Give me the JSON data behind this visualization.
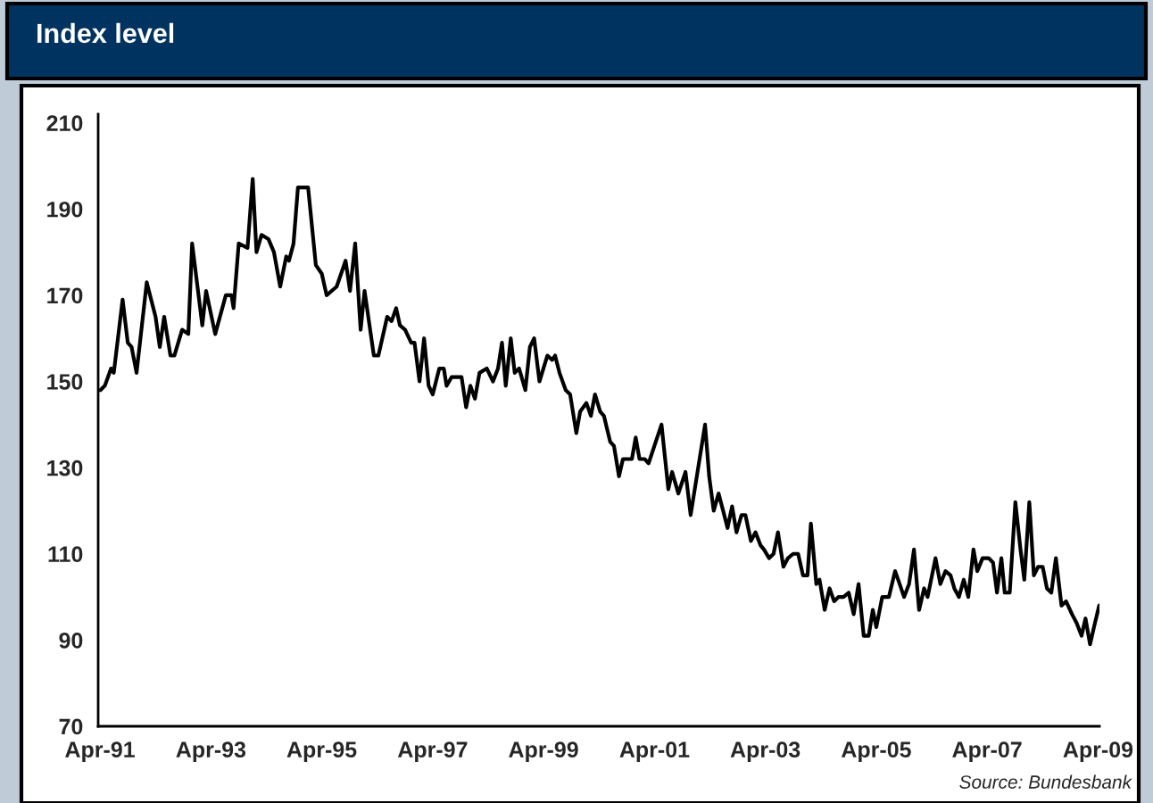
{
  "chart_data": {
    "type": "line",
    "title": "Index level",
    "annotations": [
      "Source: Bundesbank"
    ],
    "x": [
      "1991-04-04",
      "1991-05-03",
      "1991-06-13",
      "1991-07-01",
      "1991-08-28",
      "1991-10-01",
      "1991-10-26",
      "1991-11-28",
      "1992-02-03",
      "1992-04-01",
      "1992-04-29",
      "1992-05-28",
      "1992-07-08",
      "1992-08-03",
      "1992-09-23",
      "1992-11-03",
      "1992-11-28",
      "1993-02-03",
      "1993-02-28",
      "1993-04-29",
      "1993-07-08",
      "1993-08-14",
      "1993-08-28",
      "1993-10-01",
      "1993-11-28",
      "1994-01-01",
      "1994-01-26",
      "1994-02-28",
      "1994-04-15",
      "1994-05-21",
      "1994-07-01",
      "1994-08-10",
      "1994-08-28",
      "1994-09-27",
      "1994-10-26",
      "1995-01-01",
      "1995-02-21",
      "1995-04-01",
      "1995-05-03",
      "1995-07-08",
      "1995-09-05",
      "1995-10-04",
      "1995-11-07",
      "1995-12-13",
      "1996-01-08",
      "1996-03-09",
      "1996-04-08",
      "1996-06-05",
      "1996-07-04",
      "1996-08-03",
      "1996-08-28",
      "1996-10-01",
      "1996-11-10",
      "1996-12-02",
      "1997-01-04",
      "1997-02-03",
      "1997-03-05",
      "1997-04-01",
      "1997-05-14",
      "1997-06-13",
      "1997-07-01",
      "1997-08-03",
      "1997-08-28",
      "1997-10-08",
      "1997-11-07",
      "1997-12-05",
      "1998-01-04",
      "1998-02-03",
      "1998-03-23",
      "1998-05-03",
      "1998-06-05",
      "1998-07-01",
      "1998-07-26",
      "1998-08-28",
      "1998-09-23",
      "1998-10-22",
      "1998-12-02",
      "1999-01-01",
      "1999-01-29",
      "1999-03-05",
      "1999-04-26",
      "1999-05-28",
      "1999-06-16",
      "1999-07-15",
      "1999-08-25",
      "1999-09-23",
      "1999-11-03",
      "1999-11-28",
      "2000-01-08",
      "2000-02-07",
      "2000-03-05",
      "2000-04-08",
      "2000-05-03",
      "2000-06-13",
      "2000-07-08",
      "2000-08-10",
      "2000-09-05",
      "2000-10-08",
      "2000-11-03",
      "2000-11-28",
      "2000-12-23",
      "2001-01-26",
      "2001-02-21",
      "2001-05-17",
      "2001-07-01",
      "2001-07-26",
      "2001-09-05",
      "2001-10-22",
      "2001-11-25",
      "2002-02-28",
      "2002-03-27",
      "2002-04-26",
      "2002-05-28",
      "2002-06-27",
      "2002-07-26",
      "2002-08-25",
      "2002-09-23",
      "2002-10-26",
      "2002-11-21",
      "2002-12-27",
      "2003-01-26",
      "2003-02-28",
      "2003-03-23",
      "2003-04-26",
      "2003-05-25",
      "2003-06-23",
      "2003-07-29",
      "2003-08-28",
      "2003-10-01",
      "2003-11-03",
      "2003-12-05",
      "2004-01-04",
      "2004-01-26",
      "2004-03-02",
      "2004-03-23",
      "2004-04-26",
      "2004-05-28",
      "2004-06-27",
      "2004-07-26",
      "2004-08-28",
      "2004-10-01",
      "2004-11-03",
      "2004-12-05",
      "2005-01-08",
      "2005-02-10",
      "2005-03-09",
      "2005-04-01",
      "2005-05-10",
      "2005-06-23",
      "2005-08-03",
      "2005-09-02",
      "2005-10-01",
      "2005-11-03",
      "2005-12-05",
      "2006-01-08",
      "2006-02-10",
      "2006-03-05",
      "2006-04-26",
      "2006-05-28",
      "2006-07-01",
      "2006-08-03",
      "2006-08-28",
      "2006-09-27",
      "2006-10-29",
      "2006-11-28",
      "2007-01-01",
      "2007-01-26",
      "2007-03-02",
      "2007-04-11",
      "2007-05-10",
      "2007-06-05",
      "2007-07-04",
      "2007-07-26",
      "2007-08-28",
      "2007-10-04",
      "2007-11-07",
      "2007-12-02",
      "2008-01-04",
      "2008-02-03",
      "2008-03-02",
      "2008-04-01",
      "2008-04-29",
      "2008-05-28",
      "2008-06-27",
      "2008-08-03",
      "2008-09-02",
      "2008-10-11",
      "2008-11-10",
      "2008-12-13",
      "2009-01-08",
      "2009-02-07",
      "2009-03-05",
      "2009-04-08"
    ],
    "series": [
      {
        "color": "#000000",
        "values": [
          148,
          149,
          153,
          152,
          169,
          159,
          158,
          152,
          173,
          165,
          158,
          165,
          156,
          156,
          162,
          161,
          182,
          163,
          171,
          161,
          170,
          170,
          167,
          182,
          181,
          197,
          180,
          184,
          183,
          180,
          172,
          179,
          178,
          182,
          195,
          195,
          177,
          175,
          170,
          172,
          178,
          171,
          182,
          162,
          171,
          156,
          156,
          165,
          164,
          167,
          163,
          162,
          159,
          159,
          150,
          160,
          149,
          147,
          153,
          153,
          149,
          151,
          151,
          151,
          144,
          149,
          146,
          152,
          153,
          150,
          153,
          159,
          149,
          160,
          152,
          153,
          148,
          158,
          160,
          150,
          156,
          155,
          156,
          152,
          148,
          147,
          138,
          143,
          145,
          142,
          147,
          143,
          142,
          136,
          135,
          128,
          132,
          132,
          132,
          137,
          132,
          132,
          131,
          140,
          125,
          129,
          124,
          129,
          119,
          140,
          128,
          120,
          124,
          120,
          116,
          121,
          115,
          119,
          119,
          113,
          115,
          112,
          111,
          109,
          110,
          115,
          107,
          109,
          110,
          110,
          105,
          105,
          117,
          103,
          104,
          97,
          102,
          99,
          100,
          100,
          101,
          96,
          103,
          91,
          91,
          97,
          93,
          100,
          100,
          106,
          103,
          100,
          103,
          111,
          97,
          102,
          100,
          109,
          103,
          106,
          105,
          102,
          100,
          104,
          100,
          111,
          106,
          109,
          109,
          108,
          101,
          109,
          101,
          101,
          122,
          111,
          104,
          122,
          105,
          107,
          107,
          102,
          101,
          109,
          98,
          99,
          96,
          94,
          91,
          95,
          89,
          93,
          98
        ]
      }
    ],
    "xlim": [
      "1991-03-20",
      "2009-04-10"
    ],
    "ylim": [
      70,
      212
    ],
    "xticks": [
      {
        "value": "1991-04-01",
        "label": "Apr-91"
      },
      {
        "value": "1993-04-01",
        "label": "Apr-93"
      },
      {
        "value": "1995-04-01",
        "label": "Apr-95"
      },
      {
        "value": "1997-04-01",
        "label": "Apr-97"
      },
      {
        "value": "1999-04-01",
        "label": "Apr-99"
      },
      {
        "value": "2001-04-01",
        "label": "Apr-01"
      },
      {
        "value": "2003-04-01",
        "label": "Apr-03"
      },
      {
        "value": "2005-04-01",
        "label": "Apr-05"
      },
      {
        "value": "2007-04-01",
        "label": "Apr-07"
      },
      {
        "value": "2009-04-01",
        "label": "Apr-09"
      }
    ],
    "yticks": [
      70,
      90,
      110,
      130,
      150,
      170,
      190,
      210
    ],
    "grid": false,
    "line_style": "solid",
    "marker": "none"
  }
}
